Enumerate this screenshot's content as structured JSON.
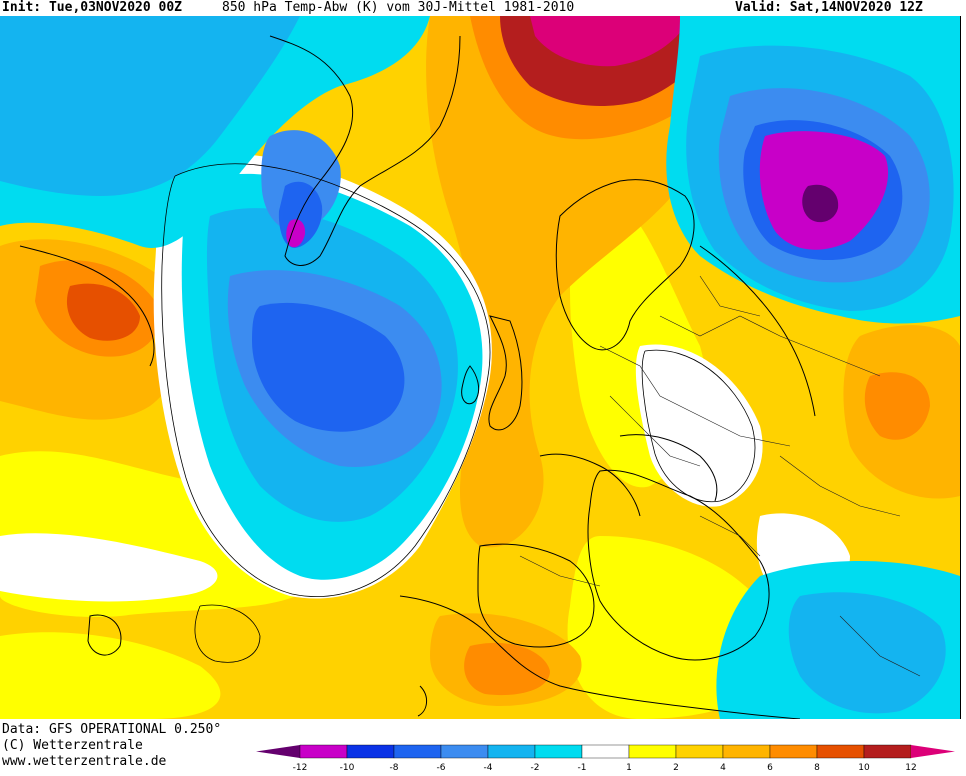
{
  "header": {
    "init": "Init: Tue,03NOV2020 00Z",
    "parameter": "850 hPa Temp-Abw (K) vom 30J-Mittel 1981-2010",
    "valid": "Valid: Sat,14NOV2020 12Z"
  },
  "footer": {
    "data_source": "Data: GFS OPERATIONAL 0.250°",
    "copyright": "(C) Wetterzentrale",
    "website": "www.wetterzentrale.de"
  },
  "legend": {
    "ticks": [
      "-12",
      "-10",
      "-8",
      "-6",
      "-4",
      "-2",
      "-1",
      "1",
      "2",
      "4",
      "6",
      "8",
      "10",
      "12"
    ],
    "colors": [
      "#c800c8",
      "#0a32e6",
      "#1e64f0",
      "#3c8cf0",
      "#14b4f0",
      "#00dcf0",
      "#ffffff",
      "#ffff00",
      "#ffd200",
      "#ffb400",
      "#ff8c00",
      "#e65000",
      "#b41e1e"
    ],
    "low_cap_color": "#64006e",
    "high_cap_color": "#dc0078"
  }
}
